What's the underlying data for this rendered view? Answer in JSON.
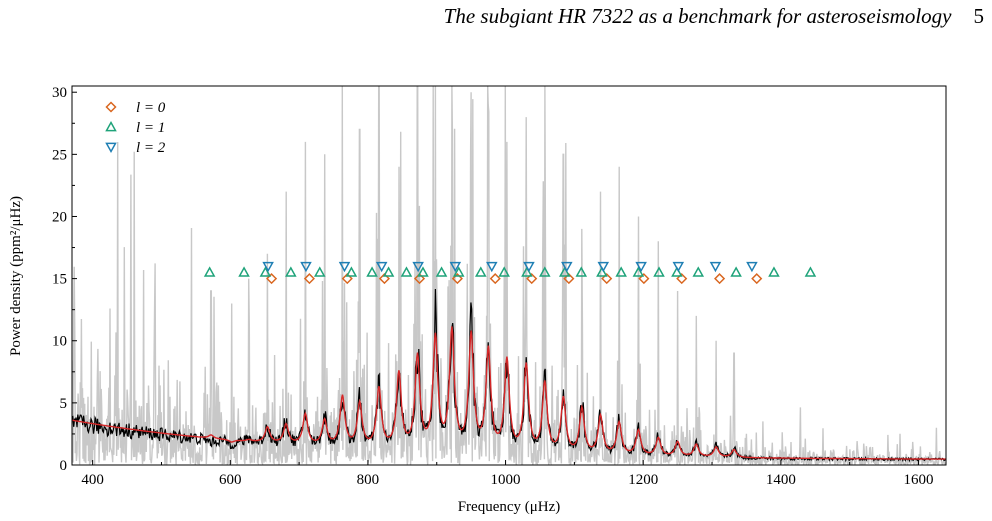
{
  "header": {
    "title": "The subgiant HR 7322 as a benchmark for asteroseismology",
    "page_number": "5"
  },
  "chart_data": {
    "type": "line",
    "xlabel": "Frequency (μHz)",
    "ylabel": "Power density (ppm²/μHz)",
    "xlim": [
      370,
      1640
    ],
    "ylim": [
      0,
      30.5
    ],
    "xticks": [
      400,
      600,
      800,
      1000,
      1200,
      1400,
      1600
    ],
    "yticks": [
      0,
      5,
      10,
      15,
      20,
      25,
      30
    ],
    "grid": false,
    "legend": {
      "placement": "top-left",
      "entries": [
        {
          "label": "l = 0",
          "marker": "diamond",
          "color": "#d9661f"
        },
        {
          "label": "l = 1",
          "marker": "triangle-up",
          "color": "#1fa37a"
        },
        {
          "label": "l = 2",
          "marker": "triangle-down",
          "color": "#1f7fb4"
        }
      ]
    },
    "series": [
      {
        "name": "l = 0",
        "marker": "diamond",
        "color": "#d9661f",
        "y": 15,
        "x": [
          660,
          715,
          770,
          824,
          875,
          930,
          985,
          1038,
          1092,
          1147,
          1201,
          1256,
          1311,
          1365
        ]
      },
      {
        "name": "l = 1",
        "marker": "triangle-up",
        "color": "#1fa37a",
        "y": 15.5,
        "x": [
          570,
          620,
          651,
          688,
          730,
          776,
          806,
          830,
          856,
          880,
          907,
          932,
          964,
          998,
          1031,
          1057,
          1086,
          1110,
          1140,
          1168,
          1193,
          1223,
          1249,
          1280,
          1335,
          1390,
          1443
        ]
      },
      {
        "name": "l = 2",
        "marker": "triangle-down",
        "color": "#1f7fb4",
        "y": 16,
        "x": [
          655,
          710,
          766,
          820,
          873,
          927,
          980,
          1034,
          1089,
          1142,
          1197,
          1251,
          1305,
          1358
        ]
      }
    ],
    "lines": [
      {
        "role": "raw power spectrum",
        "color": "#c8c8c8"
      },
      {
        "role": "smoothed spectrum",
        "color": "#000000"
      },
      {
        "role": "fitted model",
        "color": "#d62728"
      }
    ],
    "peaks": {
      "freqs": [
        572,
        602,
        627,
        654,
        681,
        709,
        737,
        763,
        788,
        816,
        845,
        872,
        898,
        922,
        950,
        975,
        1002,
        1030,
        1057,
        1084,
        1111,
        1138,
        1165,
        1193,
        1222,
        1250,
        1277,
        1306,
        1332
      ],
      "smooth": [
        1.9,
        1.7,
        2.2,
        3.2,
        3.6,
        4.3,
        3.8,
        5.5,
        5.0,
        6.1,
        7.5,
        8.8,
        11.5,
        11.0,
        10.5,
        9.3,
        8.3,
        8.0,
        6.6,
        5.3,
        4.6,
        4.0,
        3.5,
        2.9,
        2.3,
        2.0,
        1.7,
        1.5,
        1.3
      ],
      "model": [
        2.4,
        1.8,
        2.0,
        3.0,
        3.2,
        4.0,
        3.5,
        5.4,
        4.8,
        6.0,
        7.2,
        8.5,
        10.0,
        10.5,
        10.2,
        9.0,
        8.2,
        7.8,
        6.4,
        5.2,
        4.4,
        3.8,
        3.3,
        2.7,
        2.1,
        1.8,
        1.6,
        1.4,
        1.2
      ],
      "raw_max": [
        14,
        13,
        15,
        17,
        22,
        26,
        25,
        36,
        27,
        34,
        24,
        31,
        35,
        32,
        30,
        29,
        26,
        28,
        36,
        25,
        19,
        22,
        24,
        20,
        18,
        14,
        12,
        10,
        9
      ]
    },
    "background": {
      "at_min": 3.6,
      "at_max": 0.4
    }
  }
}
